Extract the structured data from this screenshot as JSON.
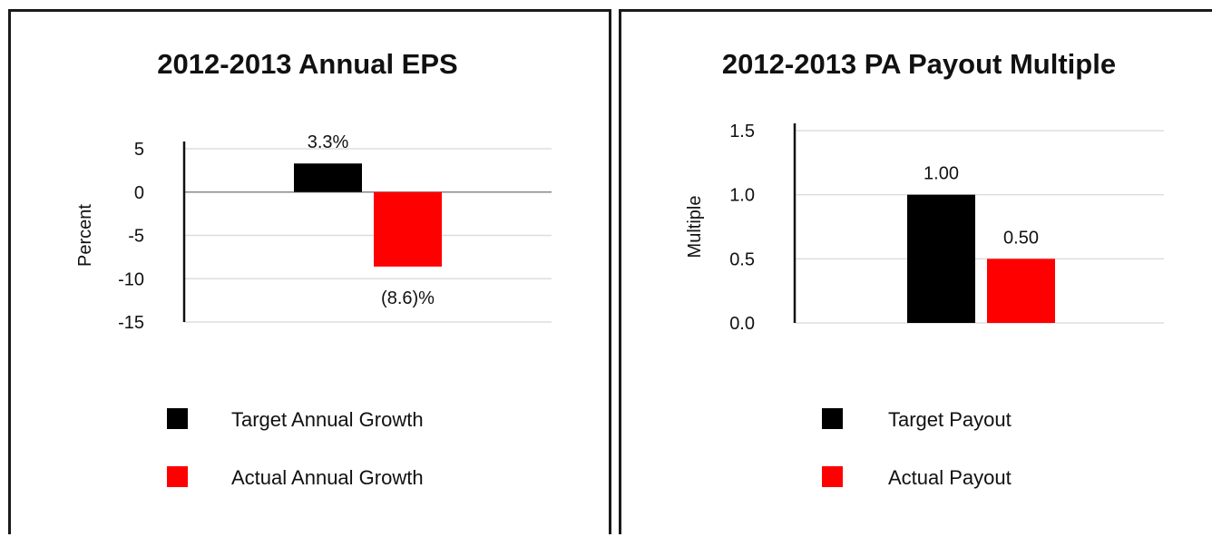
{
  "chart_data": [
    {
      "type": "bar",
      "title": "2012-2013 Annual EPS",
      "ylabel": "Percent",
      "xlabel": "",
      "ylim": [
        -15,
        5
      ],
      "yticks": [
        5,
        0,
        -5,
        -10,
        -15
      ],
      "grid": true,
      "legend_position": "bottom",
      "series": [
        {
          "name": "Target Annual Growth",
          "values": [
            3.3
          ],
          "color": "#000000",
          "label": "3.3%"
        },
        {
          "name": "Actual Annual Growth",
          "values": [
            -8.6
          ],
          "color": "#ff0000",
          "label": "(8.6)%"
        }
      ]
    },
    {
      "type": "bar",
      "title": "2012-2013 PA Payout Multiple",
      "ylabel": "Multiple",
      "xlabel": "",
      "ylim": [
        0,
        1.5
      ],
      "yticks": [
        "1.5",
        "1.0",
        "0.5",
        "0.0"
      ],
      "grid": true,
      "legend_position": "bottom",
      "series": [
        {
          "name": "Target Payout",
          "values": [
            1.0
          ],
          "color": "#000000",
          "label": "1.00"
        },
        {
          "name": "Actual Payout",
          "values": [
            0.5
          ],
          "color": "#ff0000",
          "label": "0.50"
        }
      ]
    }
  ]
}
